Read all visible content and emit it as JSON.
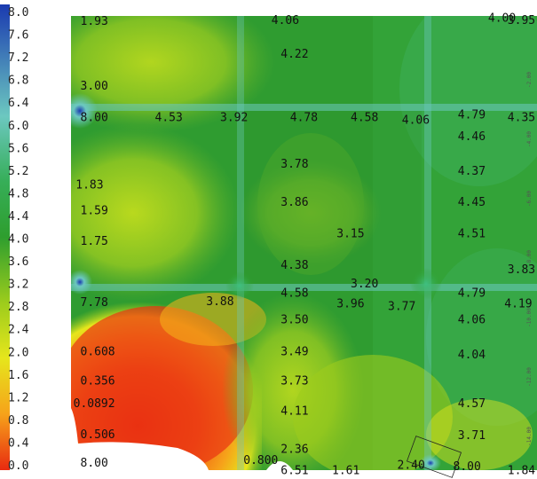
{
  "chart_data": {
    "type": "heatmap",
    "title": "",
    "xlabel": "",
    "ylabel": "",
    "colorbar": {
      "ticks": [
        "8.0",
        "7.6",
        "7.2",
        "6.8",
        "6.4",
        "6.0",
        "5.6",
        "5.2",
        "4.8",
        "4.4",
        "4.0",
        "3.6",
        "3.2",
        "2.8",
        "2.4",
        "2.0",
        "1.6",
        "1.2",
        "0.8",
        "0.4",
        "0.0"
      ],
      "range": [
        0.0,
        8.0
      ],
      "colors": [
        "#e82a10",
        "#f6a21a",
        "#e6e61c",
        "#9ccc1c",
        "#2e9e2e",
        "#36ae58",
        "#6cc8c0",
        "#1a3ab0"
      ]
    },
    "right_axis_ticks": [
      "-2.00",
      "-4.00",
      "-6.00",
      "-8.00",
      "-10.00",
      "-12.00",
      "-14.00"
    ],
    "labels": [
      {
        "text": "1.93",
        "x": 0.02,
        "y": 0.992
      },
      {
        "text": "4.06",
        "x": 0.43,
        "y": 0.994
      },
      {
        "text": "4.00",
        "x": 0.895,
        "y": 0.999
      },
      {
        "text": "3.95",
        "x": 0.965,
        "y": 0.994
      },
      {
        "text": "4.22",
        "x": 0.45,
        "y": 0.92
      },
      {
        "text": "3.00",
        "x": 0.02,
        "y": 0.85
      },
      {
        "text": "8.00",
        "x": 0.02,
        "y": 0.78
      },
      {
        "text": "4.53",
        "x": 0.18,
        "y": 0.78
      },
      {
        "text": "3.92",
        "x": 0.32,
        "y": 0.78
      },
      {
        "text": "4.78",
        "x": 0.47,
        "y": 0.78
      },
      {
        "text": "4.58",
        "x": 0.6,
        "y": 0.78
      },
      {
        "text": "4.06",
        "x": 0.71,
        "y": 0.774
      },
      {
        "text": "4.79",
        "x": 0.83,
        "y": 0.786
      },
      {
        "text": "4.35",
        "x": 0.94,
        "y": 0.78
      },
      {
        "text": "4.46",
        "x": 0.83,
        "y": 0.738
      },
      {
        "text": "3.78",
        "x": 0.45,
        "y": 0.678
      },
      {
        "text": "4.37",
        "x": 0.83,
        "y": 0.662
      },
      {
        "text": "1.83",
        "x": 0.01,
        "y": 0.632
      },
      {
        "text": "3.86",
        "x": 0.45,
        "y": 0.594
      },
      {
        "text": "4.45",
        "x": 0.83,
        "y": 0.594
      },
      {
        "text": "1.59",
        "x": 0.02,
        "y": 0.575
      },
      {
        "text": "3.15",
        "x": 0.57,
        "y": 0.524
      },
      {
        "text": "4.51",
        "x": 0.83,
        "y": 0.524
      },
      {
        "text": "1.75",
        "x": 0.02,
        "y": 0.508
      },
      {
        "text": "4.38",
        "x": 0.45,
        "y": 0.455
      },
      {
        "text": "3.83",
        "x": 0.965,
        "y": 0.445
      },
      {
        "text": "3.20",
        "x": 0.6,
        "y": 0.414
      },
      {
        "text": "4.58",
        "x": 0.45,
        "y": 0.394
      },
      {
        "text": "4.79",
        "x": 0.83,
        "y": 0.394
      },
      {
        "text": "7.78",
        "x": 0.02,
        "y": 0.373
      },
      {
        "text": "3.88",
        "x": 0.29,
        "y": 0.375
      },
      {
        "text": "3.96",
        "x": 0.57,
        "y": 0.37
      },
      {
        "text": "3.77",
        "x": 0.68,
        "y": 0.364
      },
      {
        "text": "4.19",
        "x": 0.93,
        "y": 0.37
      },
      {
        "text": "3.50",
        "x": 0.45,
        "y": 0.335
      },
      {
        "text": "4.06",
        "x": 0.83,
        "y": 0.335
      },
      {
        "text": "0.608",
        "x": 0.02,
        "y": 0.265
      },
      {
        "text": "3.49",
        "x": 0.45,
        "y": 0.265
      },
      {
        "text": "4.04",
        "x": 0.83,
        "y": 0.258
      },
      {
        "text": "0.356",
        "x": 0.02,
        "y": 0.2
      },
      {
        "text": "3.73",
        "x": 0.45,
        "y": 0.2
      },
      {
        "text": "0.0892",
        "x": 0.005,
        "y": 0.15
      },
      {
        "text": "4.57",
        "x": 0.83,
        "y": 0.15
      },
      {
        "text": "4.11",
        "x": 0.45,
        "y": 0.134
      },
      {
        "text": "0.506",
        "x": 0.02,
        "y": 0.082
      },
      {
        "text": "3.71",
        "x": 0.83,
        "y": 0.08
      },
      {
        "text": "2.36",
        "x": 0.45,
        "y": 0.05
      },
      {
        "text": "8.00",
        "x": 0.02,
        "y": 0.02
      },
      {
        "text": "0.800",
        "x": 0.37,
        "y": 0.025
      },
      {
        "text": "2.40",
        "x": 0.7,
        "y": 0.015
      },
      {
        "text": "8.00",
        "x": 0.82,
        "y": 0.012
      },
      {
        "text": "6.51",
        "x": 0.45,
        "y": 0.003
      },
      {
        "text": "1.61",
        "x": 0.56,
        "y": 0.003
      },
      {
        "text": "1.84",
        "x": 0.96,
        "y": 0.003
      }
    ]
  }
}
